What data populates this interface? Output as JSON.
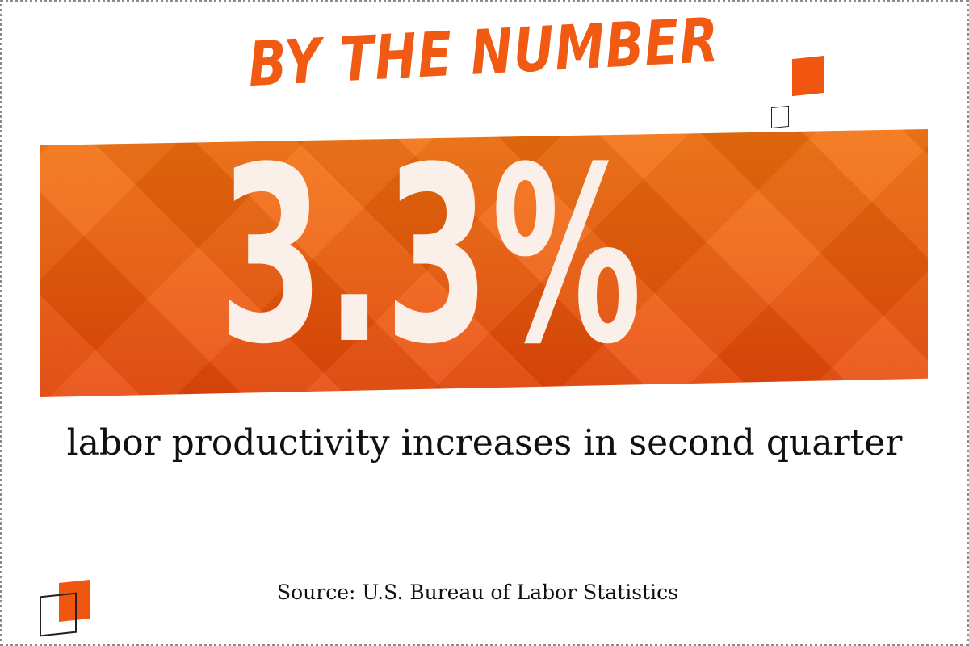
{
  "headline": "BY THE NUMBER",
  "stat": {
    "value": "3.3%"
  },
  "description": "labor productivity increases in second quarter",
  "source": "Source: U.S. Bureau of Labor Statistics",
  "colors": {
    "accent": "#f05a12",
    "banner_top": "#f2700e",
    "banner_bottom": "#e8470a",
    "stat_text": "#fbefe9"
  }
}
